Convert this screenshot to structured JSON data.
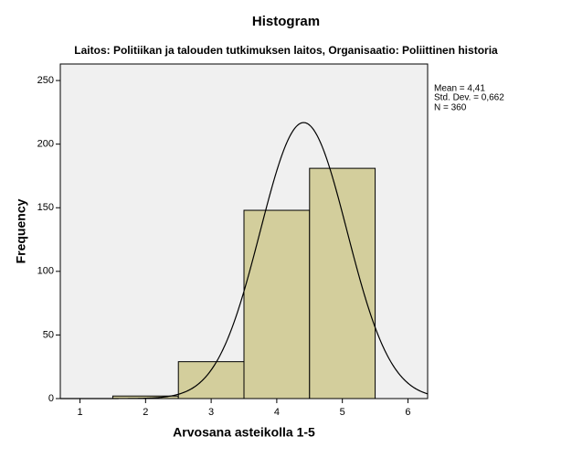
{
  "chart_data": {
    "type": "histogram",
    "title": "Histogram",
    "subtitle": "Laitos: Politiikan ja talouden tutkimuksen laitos, Organisaatio: Poliittinen historia",
    "x_label": "Arvosana asteikolla 1-5",
    "y_label": "Frequency",
    "bins": [
      1.5,
      2.5,
      3.5,
      4.5,
      5.5
    ],
    "values": [
      2,
      29,
      148,
      181
    ],
    "color": "#d3ce9c",
    "xlim": [
      0.7,
      6.3
    ],
    "xticks": [
      1,
      2,
      3,
      4,
      5,
      6
    ],
    "ylim": [
      0,
      263
    ],
    "yticks": [
      0,
      50,
      100,
      150,
      200,
      250
    ],
    "normal_curve": {
      "mean": {
        "value": 4.41,
        "label": "Mean = 4,41"
      },
      "sd": {
        "value": 0.662,
        "label": "Std. Dev. = 0,662"
      },
      "n": {
        "value": 360,
        "label": "N = 360"
      }
    }
  }
}
